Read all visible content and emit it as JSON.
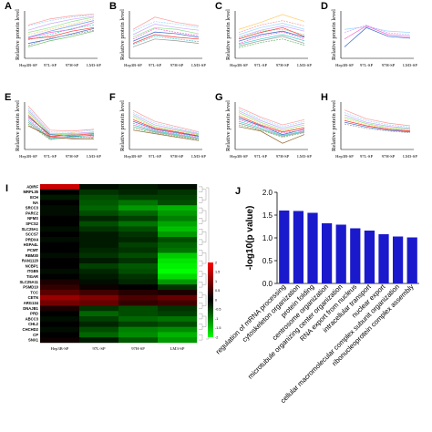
{
  "chart_data": [
    {
      "panel": "A",
      "type": "line",
      "ylabel": "Relative protein level",
      "categories": [
        "Hep3B-SP",
        "97L-SP",
        "97H-SP",
        "LM3-SP"
      ],
      "ylim": [
        0,
        1
      ],
      "series": [
        {
          "color": "#ff9a9a",
          "values": [
            0.72,
            0.86,
            0.93,
            0.97
          ]
        },
        {
          "color": "#9ad9ff",
          "values": [
            0.7,
            0.82,
            0.9,
            0.96
          ]
        },
        {
          "color": "#c9a7ff",
          "values": [
            0.6,
            0.75,
            0.85,
            0.92
          ]
        },
        {
          "color": "#8be38b",
          "values": [
            0.55,
            0.66,
            0.8,
            0.9
          ]
        },
        {
          "color": "#ffcc66",
          "values": [
            0.5,
            0.62,
            0.74,
            0.86
          ]
        },
        {
          "color": "#6699ff",
          "values": [
            0.44,
            0.58,
            0.7,
            0.82
          ]
        },
        {
          "color": "#ff66cc",
          "values": [
            0.42,
            0.55,
            0.62,
            0.78
          ]
        },
        {
          "color": "#33cccc",
          "values": [
            0.38,
            0.5,
            0.64,
            0.72
          ]
        },
        {
          "color": "#ff3333",
          "values": [
            0.4,
            0.45,
            0.58,
            0.66
          ]
        },
        {
          "color": "#3366cc",
          "values": [
            0.3,
            0.4,
            0.52,
            0.64
          ]
        },
        {
          "color": "#999999",
          "values": [
            0.25,
            0.42,
            0.5,
            0.6
          ]
        },
        {
          "color": "#66bb66",
          "values": [
            0.22,
            0.36,
            0.46,
            0.58
          ]
        }
      ]
    },
    {
      "panel": "B",
      "type": "line",
      "ylabel": "Relative protein level",
      "categories": [
        "Hep3B-SP",
        "97L-SP",
        "97H-SP",
        "LM3-SP"
      ],
      "ylim": [
        0,
        1
      ],
      "series": [
        {
          "color": "#ff9a9a",
          "values": [
            0.62,
            0.9,
            0.78,
            0.7
          ]
        },
        {
          "color": "#9ad9ff",
          "values": [
            0.58,
            0.8,
            0.74,
            0.66
          ]
        },
        {
          "color": "#c9a7ff",
          "values": [
            0.5,
            0.74,
            0.66,
            0.6
          ]
        },
        {
          "color": "#8be38b",
          "values": [
            0.45,
            0.66,
            0.62,
            0.52
          ]
        },
        {
          "color": "#ff66cc",
          "values": [
            0.4,
            0.64,
            0.55,
            0.48
          ]
        },
        {
          "color": "#3366cc",
          "values": [
            0.35,
            0.56,
            0.52,
            0.44
          ]
        },
        {
          "color": "#ff3333",
          "values": [
            0.3,
            0.5,
            0.44,
            0.4
          ]
        },
        {
          "color": "#33cccc",
          "values": [
            0.28,
            0.46,
            0.4,
            0.34
          ]
        },
        {
          "color": "#999999",
          "values": [
            0.22,
            0.4,
            0.36,
            0.3
          ]
        }
      ]
    },
    {
      "panel": "C",
      "type": "line",
      "ylabel": "Relative protein level",
      "categories": [
        "Hep3B-SP",
        "97L-SP",
        "97H-SP",
        "LM3-SP"
      ],
      "ylim": [
        0,
        1
      ],
      "series": [
        {
          "color": "#ffcc66",
          "values": [
            0.62,
            0.78,
            0.96,
            0.8
          ]
        },
        {
          "color": "#ff9a9a",
          "values": [
            0.55,
            0.72,
            0.82,
            0.7
          ]
        },
        {
          "color": "#9ad9ff",
          "values": [
            0.5,
            0.66,
            0.76,
            0.62
          ]
        },
        {
          "color": "#c9a7ff",
          "values": [
            0.45,
            0.6,
            0.7,
            0.58
          ]
        },
        {
          "color": "#8be38b",
          "values": [
            0.42,
            0.58,
            0.62,
            0.5
          ]
        },
        {
          "color": "#ff3333",
          "values": [
            0.4,
            0.55,
            0.66,
            0.46
          ]
        },
        {
          "color": "#3366cc",
          "values": [
            0.35,
            0.5,
            0.58,
            0.44
          ]
        },
        {
          "color": "#ff66cc",
          "values": [
            0.3,
            0.46,
            0.56,
            0.4
          ]
        },
        {
          "color": "#33cccc",
          "values": [
            0.28,
            0.4,
            0.5,
            0.36
          ]
        },
        {
          "color": "#999999",
          "values": [
            0.24,
            0.36,
            0.46,
            0.3
          ]
        },
        {
          "color": "#66bb66",
          "values": [
            0.2,
            0.32,
            0.4,
            0.26
          ]
        }
      ]
    },
    {
      "panel": "D",
      "type": "line",
      "ylabel": "Relative protein level",
      "categories": [
        "Hep3B-SP",
        "97L-SP",
        "97H-SP",
        "LM3-SP"
      ],
      "ylim": [
        0,
        1
      ],
      "series": [
        {
          "color": "#9ad9ff",
          "values": [
            0.62,
            0.68,
            0.58,
            0.55
          ]
        },
        {
          "color": "#c9a7ff",
          "values": [
            0.55,
            0.72,
            0.54,
            0.5
          ]
        },
        {
          "color": "#ff66cc",
          "values": [
            0.4,
            0.7,
            0.5,
            0.46
          ]
        },
        {
          "color": "#3366cc",
          "values": [
            0.22,
            0.66,
            0.46,
            0.42
          ]
        }
      ]
    },
    {
      "panel": "E",
      "type": "line",
      "ylabel": "Relative protein level",
      "categories": [
        "Hep3B-SP",
        "97L-SP",
        "97H-SP",
        "LM3-SP"
      ],
      "ylim": [
        0,
        1
      ],
      "series": [
        {
          "color": "#ff9a9a",
          "values": [
            0.95,
            0.4,
            0.38,
            0.42
          ]
        },
        {
          "color": "#9ad9ff",
          "values": [
            0.9,
            0.36,
            0.35,
            0.4
          ]
        },
        {
          "color": "#c9a7ff",
          "values": [
            0.86,
            0.33,
            0.32,
            0.36
          ]
        },
        {
          "color": "#8be38b",
          "values": [
            0.82,
            0.3,
            0.3,
            0.34
          ]
        },
        {
          "color": "#ffcc66",
          "values": [
            0.78,
            0.28,
            0.34,
            0.3
          ]
        },
        {
          "color": "#ff3333",
          "values": [
            0.74,
            0.26,
            0.28,
            0.32
          ]
        },
        {
          "color": "#3366cc",
          "values": [
            0.7,
            0.3,
            0.26,
            0.28
          ]
        },
        {
          "color": "#ff66cc",
          "values": [
            0.66,
            0.24,
            0.3,
            0.26
          ]
        },
        {
          "color": "#33cccc",
          "values": [
            0.62,
            0.22,
            0.24,
            0.3
          ]
        },
        {
          "color": "#999999",
          "values": [
            0.58,
            0.2,
            0.22,
            0.24
          ]
        },
        {
          "color": "#66bb66",
          "values": [
            0.54,
            0.18,
            0.26,
            0.22
          ]
        },
        {
          "color": "#996633",
          "values": [
            0.5,
            0.25,
            0.2,
            0.2
          ]
        }
      ]
    },
    {
      "panel": "F",
      "type": "line",
      "ylabel": "Relative protein level",
      "categories": [
        "Hep3B-SP",
        "97L-SP",
        "97H-SP",
        "LM3-SP"
      ],
      "ylim": [
        0,
        1
      ],
      "series": [
        {
          "color": "#ff9a9a",
          "values": [
            0.85,
            0.6,
            0.48,
            0.36
          ]
        },
        {
          "color": "#9ad9ff",
          "values": [
            0.8,
            0.56,
            0.45,
            0.34
          ]
        },
        {
          "color": "#c9a7ff",
          "values": [
            0.76,
            0.52,
            0.42,
            0.32
          ]
        },
        {
          "color": "#8be38b",
          "values": [
            0.72,
            0.48,
            0.4,
            0.3
          ]
        },
        {
          "color": "#ffcc66",
          "values": [
            0.68,
            0.46,
            0.38,
            0.28
          ]
        },
        {
          "color": "#ff3333",
          "values": [
            0.64,
            0.44,
            0.36,
            0.27
          ]
        },
        {
          "color": "#3366cc",
          "values": [
            0.6,
            0.42,
            0.34,
            0.26
          ]
        },
        {
          "color": "#ff66cc",
          "values": [
            0.56,
            0.4,
            0.32,
            0.24
          ]
        },
        {
          "color": "#33cccc",
          "values": [
            0.52,
            0.38,
            0.3,
            0.22
          ]
        },
        {
          "color": "#999999",
          "values": [
            0.48,
            0.36,
            0.28,
            0.2
          ]
        },
        {
          "color": "#66bb66",
          "values": [
            0.44,
            0.34,
            0.26,
            0.18
          ]
        },
        {
          "color": "#996633",
          "values": [
            0.4,
            0.32,
            0.24,
            0.16
          ]
        }
      ]
    },
    {
      "panel": "G",
      "type": "line",
      "ylabel": "Relative protein level",
      "categories": [
        "Hep3B-SP",
        "97L-SP",
        "97H-SP",
        "LM3-SP"
      ],
      "ylim": [
        0,
        1
      ],
      "series": [
        {
          "color": "#ff9a9a",
          "values": [
            0.92,
            0.7,
            0.52,
            0.64
          ]
        },
        {
          "color": "#9ad9ff",
          "values": [
            0.88,
            0.66,
            0.48,
            0.6
          ]
        },
        {
          "color": "#c9a7ff",
          "values": [
            0.84,
            0.62,
            0.44,
            0.56
          ]
        },
        {
          "color": "#8be38b",
          "values": [
            0.8,
            0.58,
            0.4,
            0.52
          ]
        },
        {
          "color": "#ffcc66",
          "values": [
            0.76,
            0.55,
            0.38,
            0.48
          ]
        },
        {
          "color": "#ff3333",
          "values": [
            0.72,
            0.52,
            0.36,
            0.45
          ]
        },
        {
          "color": "#3366cc",
          "values": [
            0.68,
            0.5,
            0.3,
            0.42
          ]
        },
        {
          "color": "#ff66cc",
          "values": [
            0.64,
            0.48,
            0.34,
            0.4
          ]
        },
        {
          "color": "#33cccc",
          "values": [
            0.6,
            0.45,
            0.28,
            0.38
          ]
        },
        {
          "color": "#999999",
          "values": [
            0.56,
            0.42,
            0.26,
            0.36
          ]
        },
        {
          "color": "#66bb66",
          "values": [
            0.52,
            0.4,
            0.24,
            0.34
          ]
        },
        {
          "color": "#996633",
          "values": [
            0.48,
            0.38,
            0.1,
            0.3
          ]
        }
      ]
    },
    {
      "panel": "H",
      "type": "line",
      "ylabel": "Relative protein level",
      "categories": [
        "Hep3B-SP",
        "97L-SP",
        "97H-SP",
        "LM3-SP"
      ],
      "ylim": [
        0,
        1
      ],
      "series": [
        {
          "color": "#ff9a9a",
          "values": [
            0.86,
            0.66,
            0.56,
            0.5
          ]
        },
        {
          "color": "#9ad9ff",
          "values": [
            0.8,
            0.62,
            0.52,
            0.47
          ]
        },
        {
          "color": "#c9a7ff",
          "values": [
            0.75,
            0.58,
            0.49,
            0.44
          ]
        },
        {
          "color": "#8be38b",
          "values": [
            0.7,
            0.55,
            0.46,
            0.42
          ]
        },
        {
          "color": "#ffcc66",
          "values": [
            0.66,
            0.52,
            0.44,
            0.4
          ]
        },
        {
          "color": "#ff3333",
          "values": [
            0.62,
            0.5,
            0.42,
            0.38
          ]
        },
        {
          "color": "#3366cc",
          "values": [
            0.58,
            0.47,
            0.4,
            0.36
          ]
        },
        {
          "color": "#999999",
          "values": [
            0.54,
            0.44,
            0.38,
            0.34
          ]
        }
      ]
    },
    {
      "panel": "I",
      "type": "heatmap",
      "columns": [
        "Hep3B-SP",
        "97L-SP",
        "97H-SP",
        "LM3-SP"
      ],
      "rows": [
        "ADIRF",
        "MRPL35",
        "ECH",
        "NA",
        "SRCC3",
        "PARC2",
        "NFMS",
        "SPCS2",
        "SLC25A1",
        "SCCS7",
        "PRDX4",
        "HSPA4L",
        "PCMT",
        "RBM30",
        "RAN1120",
        "NCBP1",
        "ITGB5",
        "TIGAR",
        "SLC25A11",
        "PSMD10",
        "TCC",
        "CETN",
        "ARG134",
        "DNAJB1",
        "PRD",
        "ABCC3",
        "CHL2",
        "CHCHD2",
        "CP",
        "SNX1"
      ],
      "values": [
        [
          1.6,
          -0.1,
          -0.2,
          -0.1
        ],
        [
          0.0,
          -0.4,
          -0.3,
          -0.4
        ],
        [
          -0.2,
          -0.6,
          -0.5,
          -0.5
        ],
        [
          0.0,
          -0.7,
          -0.9,
          -0.6
        ],
        [
          -0.1,
          -0.8,
          -1.2,
          -1.4
        ],
        [
          -0.1,
          -0.6,
          -0.8,
          -1.2
        ],
        [
          0.0,
          -0.3,
          -0.5,
          -1.0
        ],
        [
          0.0,
          -0.6,
          -0.9,
          -1.3
        ],
        [
          -0.1,
          -0.4,
          -0.6,
          -1.5
        ],
        [
          0.0,
          -0.2,
          -0.4,
          -1.2
        ],
        [
          -0.1,
          -0.2,
          -0.3,
          -0.6
        ],
        [
          0.0,
          -0.2,
          -0.5,
          -0.8
        ],
        [
          0.0,
          -0.3,
          -0.4,
          -0.9
        ],
        [
          -0.1,
          -0.4,
          -0.6,
          -1.6
        ],
        [
          0.0,
          -0.2,
          -0.4,
          -1.8
        ],
        [
          0.0,
          -0.5,
          -0.7,
          -1.9
        ],
        [
          -0.1,
          -0.3,
          -0.6,
          -2.0
        ],
        [
          0.0,
          -0.2,
          -0.4,
          -1.7
        ],
        [
          0.2,
          -0.1,
          -0.3,
          -1.2
        ],
        [
          0.4,
          0.1,
          0.0,
          -0.4
        ],
        [
          0.7,
          0.5,
          0.3,
          0.2
        ],
        [
          1.2,
          1.0,
          0.6,
          0.8
        ],
        [
          0.9,
          0.8,
          0.4,
          0.5
        ],
        [
          0.2,
          -0.4,
          -0.6,
          -0.4
        ],
        [
          0.0,
          -0.8,
          -0.6,
          -0.5
        ],
        [
          -0.1,
          -0.5,
          -0.8,
          -0.9
        ],
        [
          0.0,
          -0.3,
          -0.5,
          -0.6
        ],
        [
          -0.1,
          -0.6,
          -1.0,
          -1.1
        ],
        [
          0.0,
          -0.8,
          -1.1,
          -1.4
        ],
        [
          0.1,
          -0.2,
          -0.7,
          -1.2
        ]
      ],
      "colorbar_ticks": [
        "2",
        "1.5",
        "1",
        "0.5",
        "0",
        "-0.5",
        "-1",
        "-1.5",
        "-2"
      ],
      "colors": {
        "high": "#ff0000",
        "mid": "#000000",
        "low": "#00ff00"
      }
    },
    {
      "panel": "J",
      "type": "bar",
      "ylabel": "-log10(p value)",
      "ylim": [
        0,
        2.0
      ],
      "yticks": [
        "0.0",
        "0.5",
        "1.0",
        "1.5",
        "2.0"
      ],
      "categories": [
        "regulation of mRNA processing",
        "cytoskeleton organization",
        "protein folding",
        "centrosome organization",
        "microtubule organizing center organization",
        "RNA export from nucleus",
        "intracellular transport",
        "nuclear export",
        "cellular macromolecular complex subunit organization",
        "ribonucleoprotein complex assembly"
      ],
      "values": [
        1.6,
        1.59,
        1.55,
        1.32,
        1.29,
        1.21,
        1.16,
        1.08,
        1.03,
        1.01
      ],
      "bar_color": "#1a1acc"
    }
  ]
}
